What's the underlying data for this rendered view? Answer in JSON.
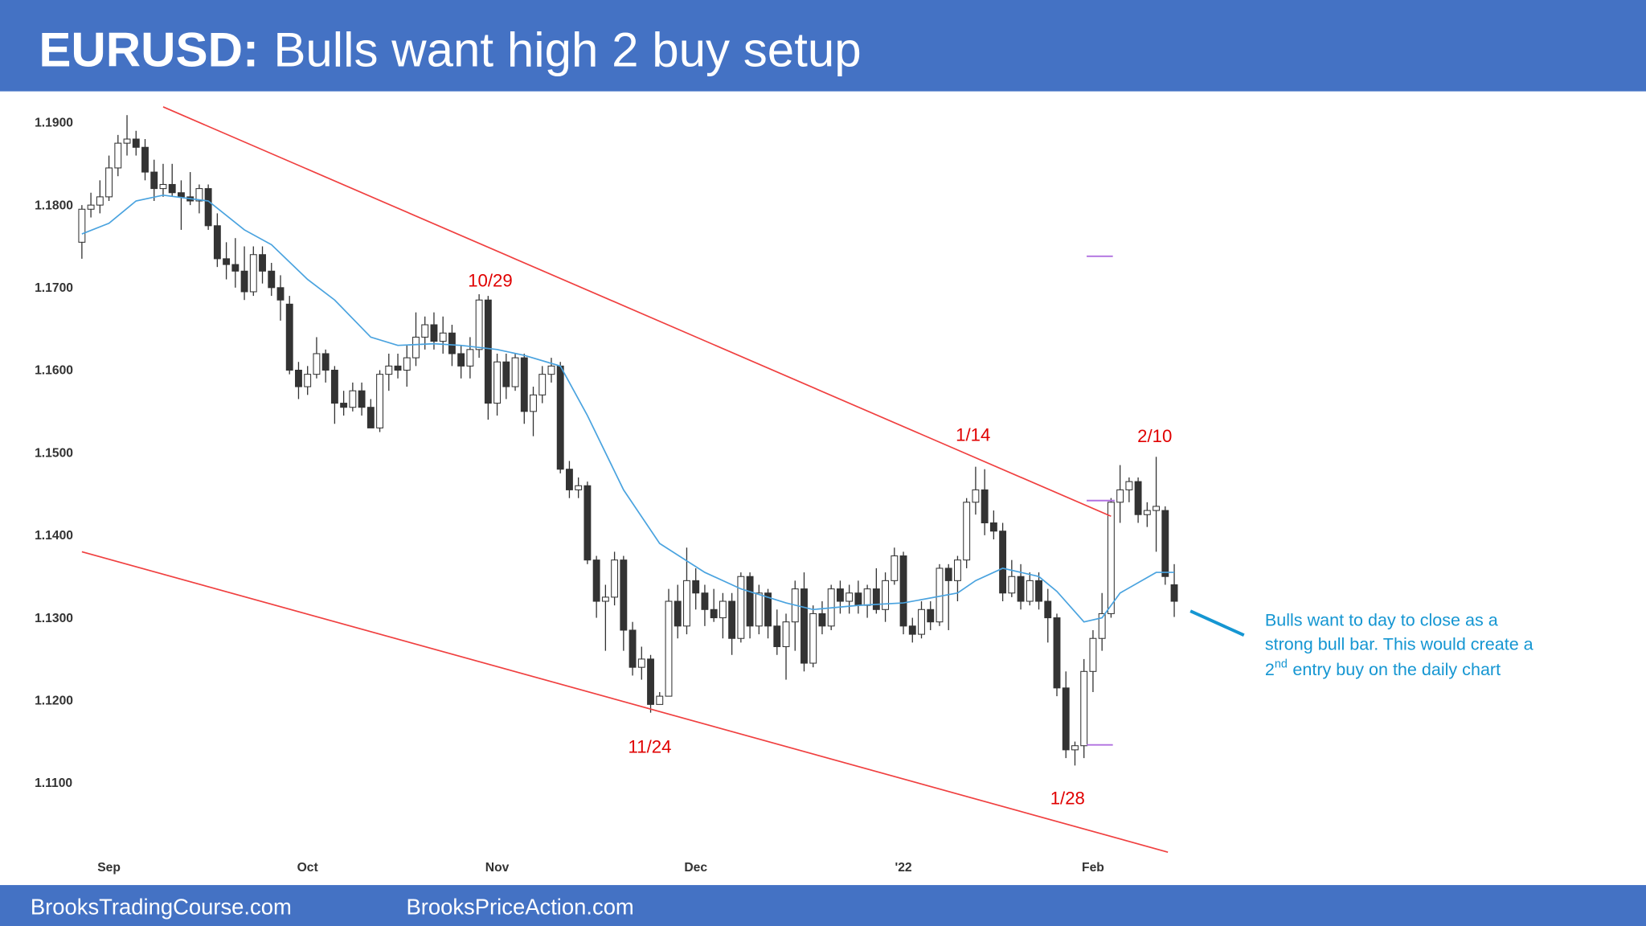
{
  "chart_data": {
    "type": "candlestick",
    "title_lead": "EURUSD:",
    "title": "Bulls want high 2 buy setup",
    "footer": [
      "BrooksTradingCourse.com",
      "BrooksPriceAction.com"
    ],
    "categories": [
      null,
      null,
      null,
      "Sep",
      null,
      null,
      null,
      null,
      null,
      null,
      null,
      null,
      null,
      null,
      null,
      null,
      null,
      null,
      null,
      null,
      null,
      null,
      null,
      null,
      null,
      "Oct",
      null,
      null,
      null,
      null,
      null,
      null,
      null,
      null,
      null,
      null,
      null,
      null,
      null,
      null,
      null,
      null,
      null,
      null,
      null,
      null,
      "Nov",
      null,
      null,
      null,
      null,
      null,
      null,
      null,
      null,
      null,
      null,
      null,
      null,
      null,
      null,
      null,
      null,
      null,
      null,
      null,
      null,
      null,
      "Dec",
      null,
      null,
      null,
      null,
      null,
      null,
      null,
      null,
      null,
      null,
      null,
      null,
      null,
      null,
      null,
      null,
      null,
      null,
      null,
      null,
      null,
      null,
      "'22",
      null,
      null,
      null,
      null,
      null,
      null,
      null,
      null,
      null,
      null,
      null,
      null,
      null,
      null,
      null,
      null,
      null,
      null,
      null,
      null,
      "Feb",
      null,
      null,
      null,
      null,
      null,
      null,
      null,
      null,
      null
    ],
    "ohlc": [
      [
        1.1755,
        1.18,
        1.1735,
        1.1795
      ],
      [
        1.1795,
        1.1815,
        1.1785,
        1.18
      ],
      [
        1.18,
        1.183,
        1.179,
        1.181
      ],
      [
        1.181,
        1.186,
        1.1805,
        1.1845
      ],
      [
        1.1845,
        1.1885,
        1.1835,
        1.1875
      ],
      [
        1.1875,
        1.1909,
        1.186,
        1.188
      ],
      [
        1.188,
        1.189,
        1.186,
        1.187
      ],
      [
        1.187,
        1.188,
        1.183,
        1.184
      ],
      [
        1.184,
        1.1855,
        1.1805,
        1.182
      ],
      [
        1.182,
        1.185,
        1.181,
        1.1825
      ],
      [
        1.1825,
        1.185,
        1.181,
        1.1815
      ],
      [
        1.1815,
        1.183,
        1.177,
        1.181
      ],
      [
        1.181,
        1.184,
        1.18,
        1.1805
      ],
      [
        1.1805,
        1.1825,
        1.179,
        1.182
      ],
      [
        1.182,
        1.1825,
        1.177,
        1.1775
      ],
      [
        1.1775,
        1.179,
        1.1725,
        1.1735
      ],
      [
        1.1735,
        1.1755,
        1.171,
        1.1728
      ],
      [
        1.1728,
        1.176,
        1.17,
        1.172
      ],
      [
        1.172,
        1.175,
        1.1685,
        1.1695
      ],
      [
        1.1695,
        1.175,
        1.169,
        1.174
      ],
      [
        1.174,
        1.175,
        1.1705,
        1.172
      ],
      [
        1.172,
        1.173,
        1.169,
        1.17
      ],
      [
        1.17,
        1.1715,
        1.166,
        1.1685
      ],
      [
        1.168,
        1.169,
        1.1595,
        1.16
      ],
      [
        1.16,
        1.161,
        1.1565,
        1.158
      ],
      [
        1.158,
        1.1605,
        1.157,
        1.1595
      ],
      [
        1.1595,
        1.164,
        1.159,
        1.162
      ],
      [
        1.162,
        1.1625,
        1.1585,
        1.16
      ],
      [
        1.16,
        1.1605,
        1.1535,
        1.156
      ],
      [
        1.156,
        1.1575,
        1.1545,
        1.1555
      ],
      [
        1.1555,
        1.1585,
        1.155,
        1.1575
      ],
      [
        1.1575,
        1.1585,
        1.1545,
        1.1555
      ],
      [
        1.1555,
        1.1565,
        1.153,
        1.153
      ],
      [
        1.153,
        1.16,
        1.1525,
        1.1595
      ],
      [
        1.1595,
        1.162,
        1.1575,
        1.1605
      ],
      [
        1.1605,
        1.162,
        1.159,
        1.16
      ],
      [
        1.16,
        1.163,
        1.158,
        1.1615
      ],
      [
        1.1615,
        1.167,
        1.1605,
        1.164
      ],
      [
        1.164,
        1.1665,
        1.1625,
        1.1655
      ],
      [
        1.1655,
        1.167,
        1.1625,
        1.1635
      ],
      [
        1.1635,
        1.1665,
        1.162,
        1.1645
      ],
      [
        1.1645,
        1.1655,
        1.1605,
        1.162
      ],
      [
        1.162,
        1.163,
        1.159,
        1.1605
      ],
      [
        1.1605,
        1.164,
        1.159,
        1.1625
      ],
      [
        1.1625,
        1.1692,
        1.1615,
        1.1685
      ],
      [
        1.1685,
        1.169,
        1.154,
        1.156
      ],
      [
        1.156,
        1.162,
        1.1545,
        1.161
      ],
      [
        1.161,
        1.162,
        1.1565,
        1.158
      ],
      [
        1.158,
        1.162,
        1.1575,
        1.1615
      ],
      [
        1.1615,
        1.162,
        1.1535,
        1.155
      ],
      [
        1.155,
        1.158,
        1.152,
        1.157
      ],
      [
        1.157,
        1.1605,
        1.156,
        1.1595
      ],
      [
        1.1595,
        1.1615,
        1.1585,
        1.1605
      ],
      [
        1.1605,
        1.161,
        1.1475,
        1.148
      ],
      [
        1.148,
        1.149,
        1.1445,
        1.1455
      ],
      [
        1.1455,
        1.147,
        1.1445,
        1.146
      ],
      [
        1.146,
        1.1465,
        1.1365,
        1.137
      ],
      [
        1.137,
        1.1375,
        1.13,
        1.132
      ],
      [
        1.132,
        1.134,
        1.126,
        1.1325
      ],
      [
        1.1325,
        1.138,
        1.1315,
        1.137
      ],
      [
        1.137,
        1.1375,
        1.126,
        1.1285
      ],
      [
        1.1285,
        1.1295,
        1.123,
        1.124
      ],
      [
        1.124,
        1.1265,
        1.1225,
        1.125
      ],
      [
        1.125,
        1.1255,
        1.1185,
        1.1195
      ],
      [
        1.1195,
        1.121,
        1.1195,
        1.1205
      ],
      [
        1.1205,
        1.1335,
        1.1205,
        1.132
      ],
      [
        1.132,
        1.134,
        1.1275,
        1.129
      ],
      [
        1.129,
        1.1385,
        1.128,
        1.1345
      ],
      [
        1.1345,
        1.136,
        1.131,
        1.133
      ],
      [
        1.133,
        1.134,
        1.129,
        1.131
      ],
      [
        1.131,
        1.1335,
        1.1295,
        1.13
      ],
      [
        1.13,
        1.133,
        1.1275,
        1.132
      ],
      [
        1.132,
        1.133,
        1.1255,
        1.1275
      ],
      [
        1.1275,
        1.1355,
        1.127,
        1.135
      ],
      [
        1.135,
        1.1355,
        1.1275,
        1.129
      ],
      [
        1.129,
        1.134,
        1.128,
        1.133
      ],
      [
        1.133,
        1.1335,
        1.1275,
        1.129
      ],
      [
        1.129,
        1.131,
        1.1255,
        1.1265
      ],
      [
        1.1265,
        1.1305,
        1.1225,
        1.1295
      ],
      [
        1.1295,
        1.1345,
        1.126,
        1.1335
      ],
      [
        1.1335,
        1.1355,
        1.1235,
        1.1245
      ],
      [
        1.1245,
        1.1315,
        1.124,
        1.1305
      ],
      [
        1.1305,
        1.132,
        1.128,
        1.129
      ],
      [
        1.129,
        1.134,
        1.1285,
        1.1335
      ],
      [
        1.1335,
        1.1345,
        1.1305,
        1.132
      ],
      [
        1.132,
        1.134,
        1.1305,
        1.133
      ],
      [
        1.133,
        1.1345,
        1.1305,
        1.1315
      ],
      [
        1.1315,
        1.134,
        1.13,
        1.1335
      ],
      [
        1.1335,
        1.136,
        1.1305,
        1.131
      ],
      [
        1.131,
        1.1355,
        1.1295,
        1.1345
      ],
      [
        1.1345,
        1.1385,
        1.134,
        1.1375
      ],
      [
        1.1375,
        1.138,
        1.128,
        1.129
      ],
      [
        1.129,
        1.13,
        1.127,
        1.128
      ],
      [
        1.128,
        1.132,
        1.1275,
        1.131
      ],
      [
        1.131,
        1.132,
        1.1285,
        1.1295
      ],
      [
        1.1295,
        1.1365,
        1.129,
        1.136
      ],
      [
        1.136,
        1.1365,
        1.1285,
        1.1345
      ],
      [
        1.1345,
        1.1375,
        1.132,
        1.137
      ],
      [
        1.137,
        1.1445,
        1.136,
        1.144
      ],
      [
        1.144,
        1.1483,
        1.1425,
        1.1455
      ],
      [
        1.1455,
        1.148,
        1.14,
        1.1415
      ],
      [
        1.1415,
        1.143,
        1.1395,
        1.1405
      ],
      [
        1.1405,
        1.1415,
        1.132,
        1.133
      ],
      [
        1.133,
        1.137,
        1.1325,
        1.135
      ],
      [
        1.135,
        1.1365,
        1.131,
        1.132
      ],
      [
        1.132,
        1.1355,
        1.1315,
        1.1345
      ],
      [
        1.1345,
        1.1355,
        1.131,
        1.132
      ],
      [
        1.132,
        1.1335,
        1.127,
        1.13
      ],
      [
        1.13,
        1.1305,
        1.1205,
        1.1215
      ],
      [
        1.1215,
        1.1235,
        1.113,
        1.114
      ],
      [
        1.114,
        1.115,
        1.1121,
        1.1145
      ],
      [
        1.1145,
        1.125,
        1.113,
        1.1235
      ],
      [
        1.1235,
        1.1285,
        1.121,
        1.1275
      ],
      [
        1.1275,
        1.133,
        1.126,
        1.1305
      ],
      [
        1.1305,
        1.1445,
        1.13,
        1.144
      ],
      [
        1.144,
        1.1485,
        1.1415,
        1.1455
      ],
      [
        1.1455,
        1.147,
        1.144,
        1.1465
      ],
      [
        1.1465,
        1.147,
        1.1415,
        1.1425
      ],
      [
        1.1425,
        1.144,
        1.141,
        1.143
      ],
      [
        1.143,
        1.1495,
        1.138,
        1.1435
      ],
      [
        1.143,
        1.1435,
        1.134,
        1.135
      ],
      [
        1.134,
        1.1365,
        1.1301,
        1.132
      ]
    ],
    "bull_color": "#ffffff",
    "bear_color": "#333333",
    "ma": {
      "color": "#4aa3df",
      "x": [
        0,
        3,
        6,
        9,
        14,
        18,
        21,
        25,
        28,
        32,
        35,
        39,
        42,
        46,
        49,
        53,
        56,
        60,
        64,
        69,
        73,
        78,
        81,
        86,
        91,
        97,
        99,
        102,
        106,
        108,
        111,
        113,
        115,
        119,
        121
      ],
      "values": [
        1.1765,
        1.1778,
        1.1805,
        1.1812,
        1.1805,
        1.177,
        1.1752,
        1.171,
        1.1685,
        1.164,
        1.163,
        1.1632,
        1.163,
        1.1625,
        1.1618,
        1.1605,
        1.1545,
        1.1455,
        1.139,
        1.1355,
        1.1335,
        1.1318,
        1.131,
        1.1315,
        1.1318,
        1.133,
        1.1345,
        1.136,
        1.135,
        1.1332,
        1.1295,
        1.13,
        1.133,
        1.1355,
        1.1355
      ]
    },
    "trendlines": [
      {
        "color": "#f04040",
        "x": [
          9,
          114
        ],
        "values": [
          1.1919,
          1.1423
        ]
      },
      {
        "color": "#f04040",
        "x": [
          0,
          120.3
        ],
        "values": [
          1.138,
          1.1016
        ]
      }
    ],
    "levels": [
      {
        "color": "#b070e0",
        "x": [
          111.3,
          114.2
        ],
        "value": 1.1738
      },
      {
        "color": "#b070e0",
        "x": [
          111.3,
          114.4
        ],
        "value": 1.1442
      },
      {
        "color": "#b070e0",
        "x": [
          111.3,
          114.2
        ],
        "value": 1.1146
      }
    ],
    "annotations": [
      "10/29",
      "1/14",
      "2/10",
      "11/24",
      "1/28"
    ],
    "note": [
      "Bulls want to day to close as a",
      "strong bull bar. This would create a",
      "2",
      "nd",
      "entry buy on the daily chart"
    ],
    "ylim": [
      1.098,
      1.1934
    ],
    "yticks": [
      {
        "value": 1.19,
        "label": "1.1900"
      },
      {
        "value": 1.18,
        "label": "1.1800"
      },
      {
        "value": 1.17,
        "label": "1.1700"
      },
      {
        "value": 1.16,
        "label": "1.1600"
      },
      {
        "value": 1.15,
        "label": "1.1500"
      },
      {
        "value": 1.14,
        "label": "1.1400"
      },
      {
        "value": 1.13,
        "label": "1.1300"
      },
      {
        "value": 1.12,
        "label": "1.1200"
      },
      {
        "value": 1.11,
        "label": "1.1100"
      }
    ],
    "grid": false
  }
}
